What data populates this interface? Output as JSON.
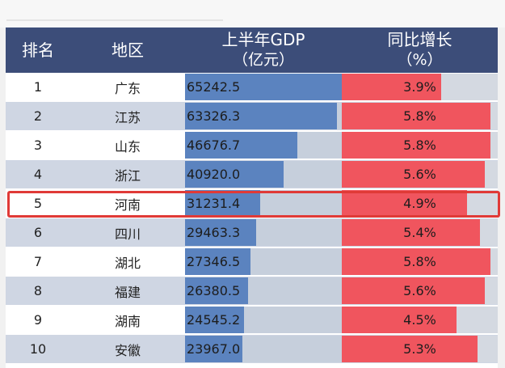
{
  "header": {
    "rank": "排名",
    "region": "地区",
    "gdp_line1": "上半年GDP",
    "gdp_line2": "（亿元）",
    "growth_line1": "同比增长",
    "growth_line2": "（%）"
  },
  "rows": [
    {
      "rank": "1",
      "region": "广东",
      "gdp": "65242.5",
      "growth": "3.9%"
    },
    {
      "rank": "2",
      "region": "江苏",
      "gdp": "63326.3",
      "growth": "5.8%"
    },
    {
      "rank": "3",
      "region": "山东",
      "gdp": "46676.7",
      "growth": "5.8%"
    },
    {
      "rank": "4",
      "region": "浙江",
      "gdp": "40920.0",
      "growth": "5.6%"
    },
    {
      "rank": "5",
      "region": "河南",
      "gdp": "31231.4",
      "growth": "4.9%"
    },
    {
      "rank": "6",
      "region": "四川",
      "gdp": "29463.3",
      "growth": "5.4%"
    },
    {
      "rank": "7",
      "region": "湖北",
      "gdp": "27346.5",
      "growth": "5.8%"
    },
    {
      "rank": "8",
      "region": "福建",
      "gdp": "26380.5",
      "growth": "5.6%"
    },
    {
      "rank": "9",
      "region": "湖南",
      "gdp": "24545.2",
      "growth": "4.5%"
    },
    {
      "rank": "10",
      "region": "安徽",
      "gdp": "23967.0",
      "growth": "5.3%"
    }
  ],
  "highlighted_rank": "5",
  "colors": {
    "header_bg": "#3c4d79",
    "gdp_bar": "#5b83bf",
    "growth_bar": "#f0555e",
    "highlight_border": "#e03a37"
  },
  "chart_data": {
    "type": "table",
    "categories": [
      "广东",
      "江苏",
      "山东",
      "浙江",
      "河南",
      "四川",
      "湖北",
      "福建",
      "湖南",
      "安徽"
    ],
    "series": [
      {
        "name": "上半年GDP（亿元）",
        "values": [
          65242.5,
          63326.3,
          46676.7,
          40920.0,
          31231.4,
          29463.3,
          27346.5,
          26380.5,
          24545.2,
          23967.0
        ]
      },
      {
        "name": "同比增长（%）",
        "values": [
          3.9,
          5.8,
          5.8,
          5.6,
          4.9,
          5.4,
          5.8,
          5.6,
          4.5,
          5.3
        ]
      }
    ],
    "gdp_max": 65242.5,
    "growth_scale_max": 6.1
  }
}
